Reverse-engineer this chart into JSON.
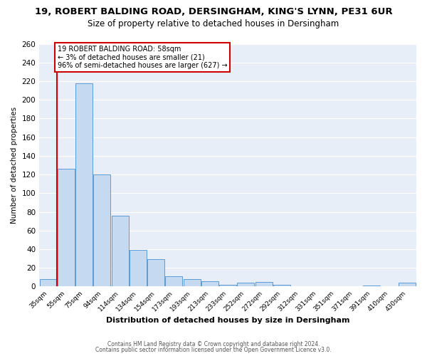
{
  "title": "19, ROBERT BALDING ROAD, DERSINGHAM, KING'S LYNN, PE31 6UR",
  "subtitle": "Size of property relative to detached houses in Dersingham",
  "xlabel": "Distribution of detached houses by size in Dersingham",
  "ylabel": "Number of detached properties",
  "bar_labels": [
    "35sqm",
    "55sqm",
    "75sqm",
    "94sqm",
    "114sqm",
    "134sqm",
    "154sqm",
    "173sqm",
    "193sqm",
    "213sqm",
    "233sqm",
    "252sqm",
    "272sqm",
    "292sqm",
    "312sqm",
    "331sqm",
    "351sqm",
    "371sqm",
    "391sqm",
    "410sqm",
    "430sqm"
  ],
  "bar_values": [
    8,
    126,
    218,
    120,
    76,
    39,
    29,
    11,
    8,
    6,
    2,
    4,
    5,
    2,
    0,
    0,
    0,
    0,
    1,
    0,
    4
  ],
  "bar_color": "#c5d9f0",
  "bar_edge_color": "#5b9bd5",
  "ylim": [
    0,
    260
  ],
  "yticks": [
    0,
    20,
    40,
    60,
    80,
    100,
    120,
    140,
    160,
    180,
    200,
    220,
    240,
    260
  ],
  "property_line_color": "#cc0000",
  "annotation_title": "19 ROBERT BALDING ROAD: 58sqm",
  "annotation_line1": "← 3% of detached houses are smaller (21)",
  "annotation_line2": "96% of semi-detached houses are larger (627) →",
  "annotation_box_color": "#ffffff",
  "annotation_box_edge": "#cc0000",
  "footer_line1": "Contains HM Land Registry data © Crown copyright and database right 2024.",
  "footer_line2": "Contains public sector information licensed under the Open Government Licence v3.0.",
  "background_color": "#ffffff",
  "plot_background": "#e8eef7",
  "grid_color": "#ffffff",
  "title_fontsize": 9.5,
  "subtitle_fontsize": 8.5
}
